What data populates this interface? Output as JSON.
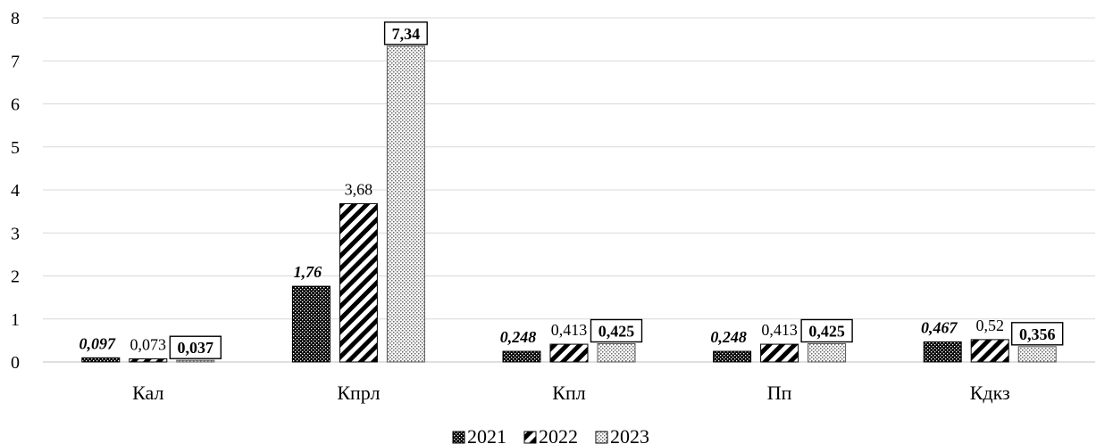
{
  "chart_data": {
    "type": "bar",
    "title": "",
    "xlabel": "",
    "ylabel": "",
    "ylim": [
      0,
      8
    ],
    "yticks": [
      "0",
      "1",
      "2",
      "3",
      "4",
      "5",
      "6",
      "7",
      "8"
    ],
    "grid": true,
    "legend_position": "bottom",
    "categories": [
      "Кал",
      "Кпрл",
      "Кпл",
      "Пп",
      "Кдкз"
    ],
    "series": [
      {
        "name": "2021",
        "values": [
          0.097,
          1.76,
          0.248,
          0.248,
          0.467
        ],
        "labels": [
          "0,097",
          "1,76",
          "0,248",
          "0,248",
          "0,467"
        ],
        "label_style": "bold-italic",
        "pattern": "dense-dots",
        "color": "#000000"
      },
      {
        "name": "2022",
        "values": [
          0.073,
          3.68,
          0.413,
          0.413,
          0.52
        ],
        "labels": [
          "0,073",
          "3,68",
          "0,413",
          "0,413",
          "0,52"
        ],
        "label_style": "normal",
        "pattern": "diagonal-stripes",
        "color": "#000000"
      },
      {
        "name": "2023",
        "values": [
          0.037,
          7.34,
          0.425,
          0.425,
          0.356
        ],
        "labels": [
          "0,037",
          "7,34",
          "0,425",
          "0,425",
          "0,356"
        ],
        "label_style": "bold-boxed",
        "pattern": "light-dots",
        "color": "#555555"
      }
    ]
  }
}
